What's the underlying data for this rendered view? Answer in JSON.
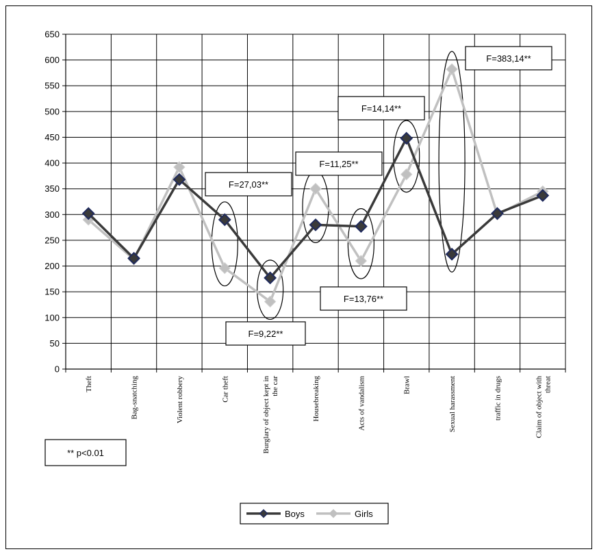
{
  "chart_data": {
    "type": "line",
    "title": "",
    "xlabel": "",
    "ylabel": "",
    "ylim": [
      0,
      650
    ],
    "y_ticks": [
      0,
      50,
      100,
      150,
      200,
      250,
      300,
      350,
      400,
      450,
      500,
      550,
      600,
      650
    ],
    "grid": true,
    "legend_position": "bottom",
    "categories": [
      "Theft",
      "Bag-snatching",
      "Violent robbery",
      "Car theft",
      "Burglary of object kept in the car",
      "Housebreaking",
      "Acts of vandalism",
      "Brawl",
      "Sexual harassment",
      "traffic in drugs",
      "Claim of object with threat"
    ],
    "series": [
      {
        "name": "Boys",
        "color": "#3a3a3a",
        "marker_color": "#1f2a5c",
        "values": [
          302,
          215,
          368,
          290,
          177,
          280,
          277,
          448,
          223,
          302,
          337
        ]
      },
      {
        "name": "Girls",
        "color": "#c0c0c0",
        "marker_color": "#c0c0c0",
        "values": [
          290,
          213,
          392,
          196,
          131,
          350,
          210,
          378,
          582,
          300,
          345
        ]
      }
    ],
    "annotations": [
      {
        "text": "F=27,03**",
        "category_index": 3
      },
      {
        "text": "F=9,22**",
        "category_index": 4
      },
      {
        "text": "F=11,25**",
        "category_index": 5
      },
      {
        "text": "F=13,76**",
        "category_index": 6
      },
      {
        "text": "F=14,14**",
        "category_index": 7
      },
      {
        "text": "F=383,14**",
        "category_index": 8
      }
    ],
    "note": "** p<0.01"
  }
}
